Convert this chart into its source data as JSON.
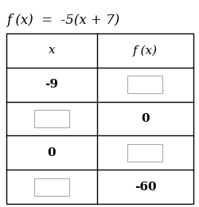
{
  "title": "f (x)  =  -5(x + 7)",
  "col1_header": "x",
  "col2_header": "f (x)",
  "rows": [
    {
      "x_val": "-9",
      "x_box": false,
      "fx_val": "",
      "fx_box": true
    },
    {
      "x_val": "",
      "x_box": true,
      "fx_val": "0",
      "fx_box": false
    },
    {
      "x_val": "0",
      "x_box": false,
      "fx_val": "",
      "fx_box": true
    },
    {
      "x_val": "",
      "x_box": true,
      "fx_val": "-60",
      "fx_box": false
    }
  ],
  "bg_color": "#ffffff",
  "table_line_color": "#000000",
  "text_color": "#000000",
  "box_color": "#ffffff",
  "box_edge_color": "#aaaaaa",
  "title_fontsize": 12,
  "header_fontsize": 11,
  "cell_fontsize": 11,
  "fig_width": 2.51,
  "fig_height": 2.6,
  "dpi": 100
}
